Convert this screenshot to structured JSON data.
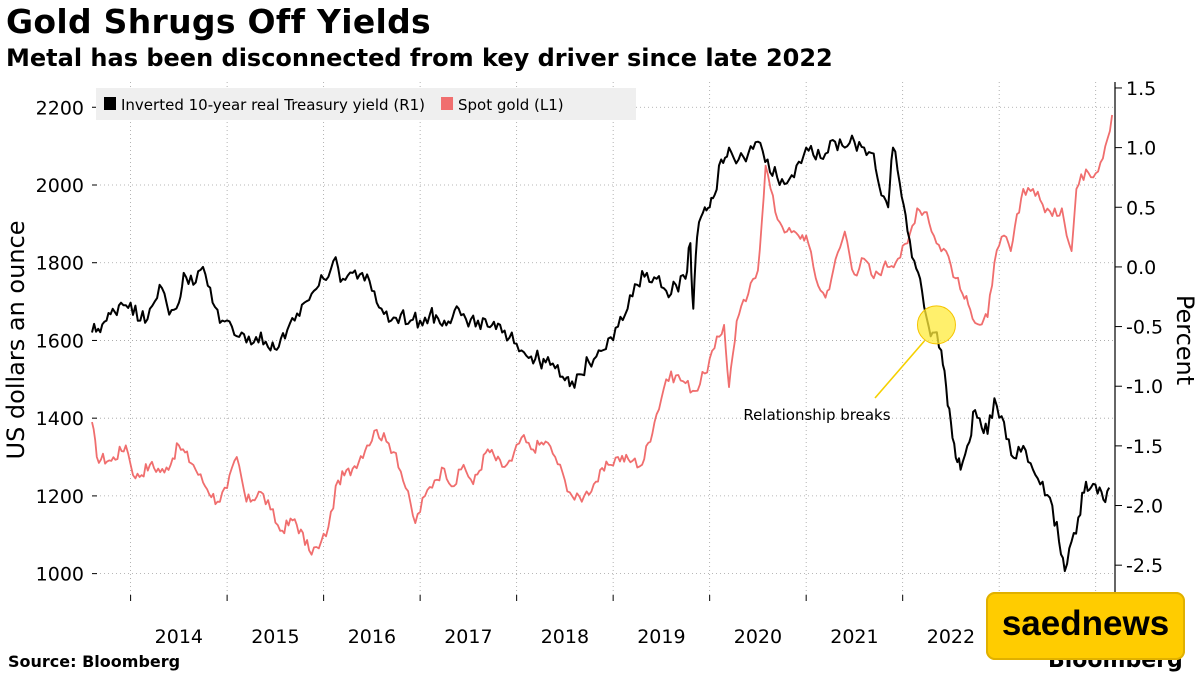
{
  "header": {
    "title": "Gold Shrugs Off Yields",
    "subtitle": "Metal has been disconnected from key driver since late 2022"
  },
  "footer": {
    "source": "Source: Bloomberg",
    "brand": "Bloomberg",
    "badge": "saednews"
  },
  "colors": {
    "gold": "#f06e6e",
    "yield": "#000000",
    "highlight": "#ffeb3b",
    "grid": "#a0a0a0",
    "legend_bg": "#efefef"
  },
  "chart_data": {
    "type": "line",
    "title": "Gold Shrugs Off Yields",
    "subtitle": "Metal has been disconnected from key driver since late 2022",
    "x_ticks": [
      "2014",
      "2015",
      "2016",
      "2017",
      "2018",
      "2019",
      "2020",
      "2021",
      "2022"
    ],
    "xlim": [
      2013.6,
      2024.2
    ],
    "y_left": {
      "label": "US dollars an ounce",
      "ticks": [
        1000,
        1200,
        1400,
        1600,
        1800,
        2000,
        2200
      ],
      "range": [
        945,
        2265
      ]
    },
    "y_right": {
      "label": "Percent",
      "ticks": [
        1.5,
        1.0,
        0.5,
        0.0,
        -0.5,
        -1.0,
        -1.5,
        -2.0,
        -2.5
      ],
      "range": [
        -2.75,
        1.55
      ]
    },
    "legend": {
      "placement": "top-left",
      "entries": [
        {
          "name": "Inverted 10-year real Treasury yield (R1)",
          "color": "#000000"
        },
        {
          "name": "Spot gold (L1)",
          "color": "#f06e6e"
        }
      ]
    },
    "grid": "dotted",
    "annotation": {
      "text": "Relationship breaks",
      "x": 2022.35,
      "y_left": 1640
    },
    "series": [
      {
        "name": "Spot gold (L1)",
        "axis": "left",
        "color": "#f06e6e",
        "points": [
          [
            2013.6,
            1390
          ],
          [
            2013.65,
            1300
          ],
          [
            2013.8,
            1290
          ],
          [
            2013.95,
            1330
          ],
          [
            2014.05,
            1245
          ],
          [
            2014.2,
            1280
          ],
          [
            2014.35,
            1260
          ],
          [
            2014.5,
            1330
          ],
          [
            2014.65,
            1280
          ],
          [
            2014.75,
            1235
          ],
          [
            2014.9,
            1185
          ],
          [
            2015.0,
            1220
          ],
          [
            2015.1,
            1300
          ],
          [
            2015.2,
            1185
          ],
          [
            2015.35,
            1210
          ],
          [
            2015.45,
            1165
          ],
          [
            2015.55,
            1110
          ],
          [
            2015.7,
            1140
          ],
          [
            2015.85,
            1060
          ],
          [
            2015.95,
            1065
          ],
          [
            2016.05,
            1120
          ],
          [
            2016.15,
            1240
          ],
          [
            2016.3,
            1270
          ],
          [
            2016.45,
            1330
          ],
          [
            2016.55,
            1370
          ],
          [
            2016.65,
            1340
          ],
          [
            2016.75,
            1310
          ],
          [
            2016.85,
            1220
          ],
          [
            2016.95,
            1130
          ],
          [
            2017.05,
            1200
          ],
          [
            2017.15,
            1240
          ],
          [
            2017.25,
            1270
          ],
          [
            2017.35,
            1225
          ],
          [
            2017.45,
            1280
          ],
          [
            2017.55,
            1230
          ],
          [
            2017.7,
            1320
          ],
          [
            2017.85,
            1275
          ],
          [
            2017.95,
            1290
          ],
          [
            2018.05,
            1350
          ],
          [
            2018.15,
            1320
          ],
          [
            2018.3,
            1340
          ],
          [
            2018.4,
            1300
          ],
          [
            2018.5,
            1240
          ],
          [
            2018.6,
            1190
          ],
          [
            2018.7,
            1200
          ],
          [
            2018.8,
            1230
          ],
          [
            2018.95,
            1280
          ],
          [
            2019.05,
            1300
          ],
          [
            2019.2,
            1290
          ],
          [
            2019.3,
            1280
          ],
          [
            2019.45,
            1410
          ],
          [
            2019.55,
            1500
          ],
          [
            2019.65,
            1510
          ],
          [
            2019.75,
            1490
          ],
          [
            2019.85,
            1470
          ],
          [
            2019.95,
            1515
          ],
          [
            2020.05,
            1580
          ],
          [
            2020.15,
            1640
          ],
          [
            2020.2,
            1480
          ],
          [
            2020.28,
            1650
          ],
          [
            2020.4,
            1720
          ],
          [
            2020.5,
            1780
          ],
          [
            2020.58,
            2050
          ],
          [
            2020.68,
            1930
          ],
          [
            2020.8,
            1880
          ],
          [
            2020.92,
            1870
          ],
          [
            2021.0,
            1870
          ],
          [
            2021.1,
            1760
          ],
          [
            2021.2,
            1710
          ],
          [
            2021.28,
            1780
          ],
          [
            2021.4,
            1880
          ],
          [
            2021.5,
            1770
          ],
          [
            2021.6,
            1810
          ],
          [
            2021.7,
            1760
          ],
          [
            2021.8,
            1790
          ],
          [
            2021.95,
            1810
          ],
          [
            2022.05,
            1850
          ],
          [
            2022.15,
            1940
          ],
          [
            2022.25,
            1930
          ],
          [
            2022.35,
            1850
          ],
          [
            2022.45,
            1830
          ],
          [
            2022.55,
            1760
          ],
          [
            2022.62,
            1720
          ],
          [
            2022.7,
            1680
          ],
          [
            2022.8,
            1640
          ],
          [
            2022.88,
            1660
          ],
          [
            2022.95,
            1800
          ],
          [
            2023.05,
            1870
          ],
          [
            2023.12,
            1830
          ],
          [
            2023.25,
            1990
          ],
          [
            2023.35,
            1990
          ],
          [
            2023.45,
            1950
          ],
          [
            2023.55,
            1920
          ],
          [
            2023.65,
            1940
          ],
          [
            2023.75,
            1830
          ],
          [
            2023.8,
            1990
          ],
          [
            2023.9,
            2040
          ],
          [
            2024.0,
            2030
          ],
          [
            2024.1,
            2100
          ],
          [
            2024.17,
            2180
          ]
        ]
      },
      {
        "name": "Inverted 10-year real Treasury yield (R1)",
        "axis": "right",
        "color": "#000000",
        "points": [
          [
            2013.6,
            -0.55
          ],
          [
            2013.75,
            -0.45
          ],
          [
            2013.9,
            -0.3
          ],
          [
            2014.0,
            -0.3
          ],
          [
            2014.1,
            -0.45
          ],
          [
            2014.2,
            -0.35
          ],
          [
            2014.3,
            -0.15
          ],
          [
            2014.4,
            -0.4
          ],
          [
            2014.5,
            -0.3
          ],
          [
            2014.55,
            -0.05
          ],
          [
            2014.65,
            -0.15
          ],
          [
            2014.75,
            0.0
          ],
          [
            2014.85,
            -0.3
          ],
          [
            2014.95,
            -0.45
          ],
          [
            2015.05,
            -0.5
          ],
          [
            2015.15,
            -0.55
          ],
          [
            2015.25,
            -0.65
          ],
          [
            2015.35,
            -0.55
          ],
          [
            2015.45,
            -0.7
          ],
          [
            2015.6,
            -0.6
          ],
          [
            2015.7,
            -0.45
          ],
          [
            2015.8,
            -0.3
          ],
          [
            2015.9,
            -0.2
          ],
          [
            2016.0,
            -0.1
          ],
          [
            2016.1,
            0.05
          ],
          [
            2016.2,
            -0.1
          ],
          [
            2016.3,
            -0.05
          ],
          [
            2016.4,
            -0.05
          ],
          [
            2016.5,
            -0.2
          ],
          [
            2016.6,
            -0.35
          ],
          [
            2016.7,
            -0.45
          ],
          [
            2016.8,
            -0.4
          ],
          [
            2016.9,
            -0.45
          ],
          [
            2017.0,
            -0.45
          ],
          [
            2017.1,
            -0.4
          ],
          [
            2017.25,
            -0.45
          ],
          [
            2017.4,
            -0.35
          ],
          [
            2017.5,
            -0.5
          ],
          [
            2017.6,
            -0.45
          ],
          [
            2017.7,
            -0.5
          ],
          [
            2017.85,
            -0.55
          ],
          [
            2017.95,
            -0.55
          ],
          [
            2018.05,
            -0.7
          ],
          [
            2018.15,
            -0.75
          ],
          [
            2018.3,
            -0.8
          ],
          [
            2018.4,
            -0.85
          ],
          [
            2018.5,
            -0.95
          ],
          [
            2018.55,
            -1.0
          ],
          [
            2018.65,
            -0.9
          ],
          [
            2018.75,
            -0.8
          ],
          [
            2018.85,
            -0.7
          ],
          [
            2018.95,
            -0.6
          ],
          [
            2019.05,
            -0.5
          ],
          [
            2019.15,
            -0.35
          ],
          [
            2019.25,
            -0.15
          ],
          [
            2019.35,
            -0.05
          ],
          [
            2019.45,
            -0.1
          ],
          [
            2019.55,
            -0.2
          ],
          [
            2019.65,
            -0.15
          ],
          [
            2019.75,
            -0.1
          ],
          [
            2019.8,
            0.2
          ],
          [
            2019.83,
            -0.35
          ],
          [
            2019.87,
            0.25
          ],
          [
            2019.95,
            0.5
          ],
          [
            2020.0,
            0.5
          ],
          [
            2020.05,
            0.6
          ],
          [
            2020.12,
            0.9
          ],
          [
            2020.2,
            1.0
          ],
          [
            2020.3,
            0.9
          ],
          [
            2020.4,
            0.95
          ],
          [
            2020.5,
            1.05
          ],
          [
            2020.6,
            0.9
          ],
          [
            2020.7,
            0.75
          ],
          [
            2020.8,
            0.7
          ],
          [
            2020.9,
            0.85
          ],
          [
            2021.0,
            1.0
          ],
          [
            2021.1,
            0.9
          ],
          [
            2021.2,
            0.95
          ],
          [
            2021.3,
            1.05
          ],
          [
            2021.4,
            1.0
          ],
          [
            2021.5,
            1.05
          ],
          [
            2021.6,
            1.0
          ],
          [
            2021.7,
            0.95
          ],
          [
            2021.78,
            0.6
          ],
          [
            2021.85,
            0.5
          ],
          [
            2021.9,
            1.0
          ],
          [
            2021.97,
            0.7
          ],
          [
            2022.05,
            0.3
          ],
          [
            2022.12,
            0.05
          ],
          [
            2022.2,
            -0.2
          ],
          [
            2022.27,
            -0.5
          ],
          [
            2022.33,
            -0.55
          ],
          [
            2022.4,
            -0.7
          ],
          [
            2022.45,
            -1.0
          ],
          [
            2022.5,
            -1.3
          ],
          [
            2022.55,
            -1.6
          ],
          [
            2022.6,
            -1.7
          ],
          [
            2022.67,
            -1.5
          ],
          [
            2022.75,
            -1.2
          ],
          [
            2022.82,
            -1.35
          ],
          [
            2022.88,
            -1.4
          ],
          [
            2022.95,
            -1.1
          ],
          [
            2023.05,
            -1.3
          ],
          [
            2023.15,
            -1.6
          ],
          [
            2023.25,
            -1.5
          ],
          [
            2023.35,
            -1.7
          ],
          [
            2023.45,
            -1.8
          ],
          [
            2023.55,
            -2.0
          ],
          [
            2023.62,
            -2.3
          ],
          [
            2023.68,
            -2.55
          ],
          [
            2023.75,
            -2.3
          ],
          [
            2023.82,
            -2.1
          ],
          [
            2023.9,
            -1.8
          ],
          [
            2023.95,
            -1.85
          ],
          [
            2024.02,
            -1.9
          ],
          [
            2024.08,
            -1.95
          ],
          [
            2024.14,
            -1.85
          ]
        ]
      }
    ]
  }
}
